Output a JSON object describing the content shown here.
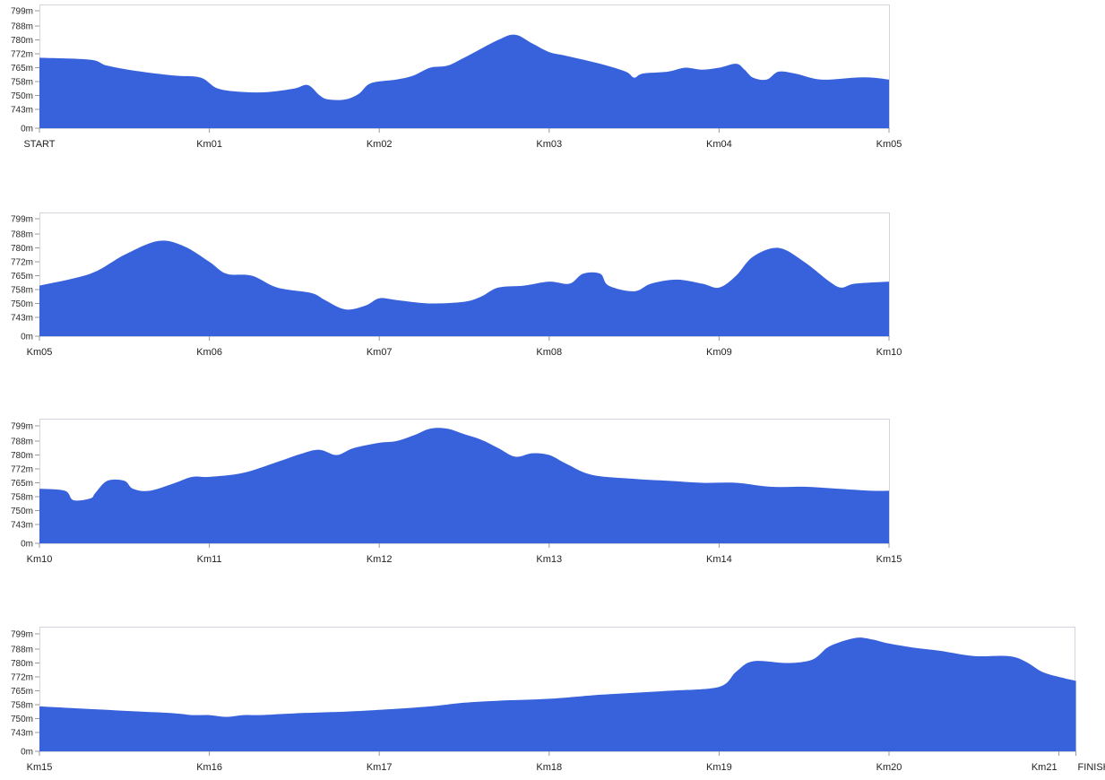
{
  "area_color": "#3762db",
  "chart_data": [
    {
      "type": "area",
      "y_tick_labels": [
        "0m",
        "743m",
        "750m",
        "758m",
        "765m",
        "772m",
        "780m",
        "788m",
        "799m"
      ],
      "x_tick_labels": [
        "START",
        "Km01",
        "Km02",
        "Km03",
        "Km04",
        "Km05"
      ],
      "km_range": [
        0,
        5
      ],
      "points": [
        [
          0,
          770
        ],
        [
          0.3,
          769
        ],
        [
          0.4,
          766
        ],
        [
          0.6,
          763
        ],
        [
          0.8,
          761
        ],
        [
          0.95,
          760
        ],
        [
          1.05,
          754
        ],
        [
          1.2,
          752
        ],
        [
          1.35,
          752
        ],
        [
          1.5,
          754
        ],
        [
          1.58,
          756
        ],
        [
          1.65,
          750
        ],
        [
          1.7,
          748
        ],
        [
          1.8,
          748
        ],
        [
          1.88,
          751
        ],
        [
          1.95,
          757
        ],
        [
          2.1,
          759
        ],
        [
          2.2,
          761
        ],
        [
          2.3,
          765
        ],
        [
          2.4,
          766
        ],
        [
          2.5,
          770
        ],
        [
          2.7,
          780
        ],
        [
          2.8,
          783
        ],
        [
          2.9,
          778
        ],
        [
          3.0,
          773
        ],
        [
          3.1,
          771
        ],
        [
          3.3,
          767
        ],
        [
          3.45,
          763
        ],
        [
          3.5,
          760
        ],
        [
          3.55,
          762
        ],
        [
          3.7,
          763
        ],
        [
          3.8,
          765
        ],
        [
          3.9,
          764
        ],
        [
          4.0,
          765
        ],
        [
          4.1,
          767
        ],
        [
          4.15,
          764
        ],
        [
          4.2,
          760
        ],
        [
          4.28,
          759
        ],
        [
          4.35,
          763
        ],
        [
          4.45,
          762
        ],
        [
          4.6,
          759
        ],
        [
          4.8,
          760
        ],
        [
          4.9,
          760
        ],
        [
          5.0,
          759
        ]
      ]
    },
    {
      "type": "area",
      "y_tick_labels": [
        "0m",
        "743m",
        "750m",
        "758m",
        "765m",
        "772m",
        "780m",
        "788m",
        "799m"
      ],
      "x_tick_labels": [
        "Km05",
        "Km06",
        "Km07",
        "Km08",
        "Km09",
        "Km10"
      ],
      "km_range": [
        5,
        10
      ],
      "points": [
        [
          5.0,
          760
        ],
        [
          5.3,
          766
        ],
        [
          5.5,
          776
        ],
        [
          5.7,
          784
        ],
        [
          5.85,
          781
        ],
        [
          6.0,
          772
        ],
        [
          6.1,
          766
        ],
        [
          6.25,
          765
        ],
        [
          6.4,
          759
        ],
        [
          6.6,
          756
        ],
        [
          6.68,
          752
        ],
        [
          6.8,
          747
        ],
        [
          6.92,
          749
        ],
        [
          7.0,
          753
        ],
        [
          7.1,
          752
        ],
        [
          7.3,
          750
        ],
        [
          7.5,
          751
        ],
        [
          7.6,
          754
        ],
        [
          7.7,
          759
        ],
        [
          7.85,
          760
        ],
        [
          8.0,
          762
        ],
        [
          8.12,
          761
        ],
        [
          8.2,
          766
        ],
        [
          8.3,
          766
        ],
        [
          8.35,
          760
        ],
        [
          8.5,
          757
        ],
        [
          8.6,
          761
        ],
        [
          8.75,
          763
        ],
        [
          8.9,
          761
        ],
        [
          9.0,
          759
        ],
        [
          9.1,
          765
        ],
        [
          9.2,
          775
        ],
        [
          9.35,
          780
        ],
        [
          9.5,
          772
        ],
        [
          9.65,
          762
        ],
        [
          9.72,
          759
        ],
        [
          9.8,
          761
        ],
        [
          10.0,
          762
        ]
      ]
    },
    {
      "type": "area",
      "y_tick_labels": [
        "0m",
        "743m",
        "750m",
        "758m",
        "765m",
        "772m",
        "780m",
        "788m",
        "799m"
      ],
      "x_tick_labels": [
        "Km10",
        "Km11",
        "Km12",
        "Km13",
        "Km14",
        "Km15"
      ],
      "km_range": [
        10,
        15
      ],
      "points": [
        [
          10.0,
          762
        ],
        [
          10.15,
          761
        ],
        [
          10.2,
          756
        ],
        [
          10.3,
          757
        ],
        [
          10.33,
          760
        ],
        [
          10.4,
          766
        ],
        [
          10.5,
          766
        ],
        [
          10.55,
          762
        ],
        [
          10.65,
          761
        ],
        [
          10.8,
          765
        ],
        [
          10.9,
          768
        ],
        [
          11.0,
          768
        ],
        [
          11.2,
          770
        ],
        [
          11.4,
          776
        ],
        [
          11.55,
          781
        ],
        [
          11.65,
          783
        ],
        [
          11.75,
          780
        ],
        [
          11.85,
          784
        ],
        [
          12.0,
          787
        ],
        [
          12.1,
          788
        ],
        [
          12.2,
          792
        ],
        [
          12.3,
          797
        ],
        [
          12.4,
          797
        ],
        [
          12.5,
          793
        ],
        [
          12.6,
          789
        ],
        [
          12.7,
          784
        ],
        [
          12.8,
          779
        ],
        [
          12.9,
          781
        ],
        [
          13.0,
          780
        ],
        [
          13.1,
          775
        ],
        [
          13.25,
          769
        ],
        [
          13.5,
          767
        ],
        [
          13.7,
          766
        ],
        [
          13.9,
          765
        ],
        [
          14.1,
          765
        ],
        [
          14.3,
          763
        ],
        [
          14.5,
          763
        ],
        [
          14.7,
          762
        ],
        [
          14.9,
          761
        ],
        [
          15.0,
          761
        ]
      ]
    },
    {
      "type": "area",
      "y_tick_labels": [
        "0m",
        "743m",
        "750m",
        "758m",
        "765m",
        "772m",
        "780m",
        "788m",
        "799m"
      ],
      "x_tick_labels": [
        "Km15",
        "Km16",
        "Km17",
        "Km18",
        "Km19",
        "Km20",
        "Km21",
        "FINISH"
      ],
      "x_tick_km": [
        15,
        16,
        17,
        18,
        19,
        20,
        21,
        21.1
      ],
      "km_range": [
        15,
        21.1
      ],
      "points": [
        [
          15.0,
          757
        ],
        [
          15.2,
          756
        ],
        [
          15.4,
          755
        ],
        [
          15.6,
          754
        ],
        [
          15.8,
          753
        ],
        [
          15.9,
          752
        ],
        [
          16.0,
          752
        ],
        [
          16.1,
          751
        ],
        [
          16.2,
          752
        ],
        [
          16.3,
          752
        ],
        [
          16.5,
          753
        ],
        [
          16.8,
          754
        ],
        [
          17.0,
          755
        ],
        [
          17.3,
          757
        ],
        [
          17.5,
          759
        ],
        [
          17.7,
          760
        ],
        [
          18.0,
          761
        ],
        [
          18.3,
          763
        ],
        [
          18.5,
          764
        ],
        [
          18.7,
          765
        ],
        [
          19.0,
          767
        ],
        [
          19.1,
          775
        ],
        [
          19.2,
          781
        ],
        [
          19.4,
          780
        ],
        [
          19.55,
          782
        ],
        [
          19.65,
          790
        ],
        [
          19.8,
          796
        ],
        [
          19.9,
          795
        ],
        [
          20.0,
          792
        ],
        [
          20.15,
          789
        ],
        [
          20.3,
          787
        ],
        [
          20.5,
          784
        ],
        [
          20.7,
          784
        ],
        [
          20.8,
          781
        ],
        [
          20.9,
          775
        ],
        [
          21.0,
          772
        ],
        [
          21.1,
          770
        ]
      ]
    }
  ]
}
